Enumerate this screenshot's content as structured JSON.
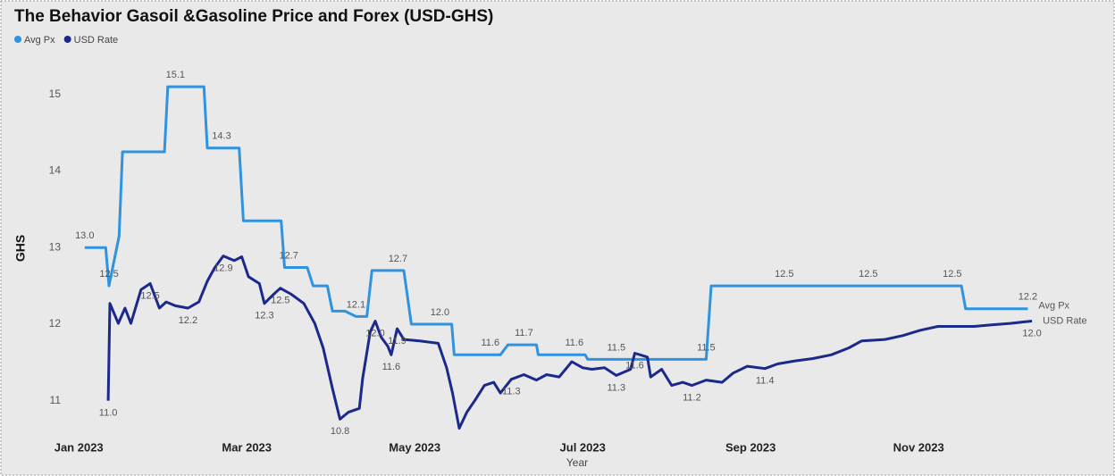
{
  "chart_data": {
    "type": "line",
    "title": "The Behavior Gasoil &Gasoline Price and Forex (USD-GHS)",
    "ylabel": "GHS",
    "xlabel": "Year",
    "xlim": [
      -0.3,
      11.7
    ],
    "xticks": [
      {
        "value": 0,
        "label": "Jan 2023"
      },
      {
        "value": 2,
        "label": "Mar 2023"
      },
      {
        "value": 4,
        "label": "May 2023"
      },
      {
        "value": 6,
        "label": "Jul 2023"
      },
      {
        "value": 8,
        "label": "Sep 2023"
      },
      {
        "value": 10,
        "label": "Nov 2023"
      }
    ],
    "ylim": [
      10.6,
      15.3
    ],
    "yticks": [
      11,
      12,
      13,
      14,
      15
    ],
    "legend": "top-left",
    "grid": false,
    "series": [
      {
        "name": "Avg Px",
        "color": "#2f93e0",
        "x": [
          0.07,
          0.32,
          0.36,
          0.48,
          0.52,
          1.02,
          1.06,
          1.15,
          1.49,
          1.53,
          1.7,
          1.91,
          1.96,
          2.41,
          2.45,
          2.5,
          2.72,
          2.79,
          2.96,
          3.02,
          3.17,
          3.3,
          3.43,
          3.49,
          3.8,
          3.87,
          3.96,
          4.3,
          4.44,
          4.47,
          4.9,
          5.02,
          5.11,
          5.3,
          5.45,
          5.47,
          5.9,
          6.03,
          6.06,
          6.4,
          7.47,
          7.53,
          8.4,
          9.4,
          10.4,
          10.51,
          10.56,
          11.3
        ],
        "values": [
          13.0,
          13.0,
          12.5,
          13.15,
          14.25,
          14.25,
          15.1,
          15.1,
          15.1,
          14.3,
          14.3,
          14.3,
          13.35,
          13.35,
          12.74,
          12.74,
          12.74,
          12.5,
          12.5,
          12.17,
          12.17,
          12.1,
          12.1,
          12.7,
          12.7,
          12.7,
          12.0,
          12.0,
          12.0,
          11.6,
          11.6,
          11.6,
          11.73,
          11.73,
          11.73,
          11.6,
          11.6,
          11.6,
          11.54,
          11.54,
          11.54,
          12.5,
          12.5,
          12.5,
          12.5,
          12.5,
          12.2,
          12.2
        ],
        "value_labels": [
          "13.0",
          null,
          "12.5",
          null,
          null,
          null,
          null,
          "15.1",
          null,
          null,
          "14.3",
          null,
          null,
          null,
          null,
          "12.7",
          null,
          null,
          null,
          null,
          null,
          "12.1",
          null,
          null,
          "12.7",
          null,
          null,
          "12.0",
          null,
          null,
          "11.6",
          null,
          null,
          "11.7",
          null,
          null,
          "11.6",
          null,
          null,
          "11.5",
          "11.5",
          null,
          "12.5",
          "12.5",
          "12.5",
          null,
          null,
          "12.2"
        ]
      },
      {
        "name": "USD Rate",
        "color": "#1b2a8a",
        "x": [
          0.35,
          0.37,
          0.47,
          0.55,
          0.62,
          0.74,
          0.85,
          0.96,
          1.04,
          1.15,
          1.3,
          1.43,
          1.53,
          1.62,
          1.72,
          1.85,
          1.94,
          2.02,
          2.15,
          2.21,
          2.32,
          2.4,
          2.53,
          2.68,
          2.81,
          2.91,
          3.02,
          3.11,
          3.21,
          3.34,
          3.38,
          3.47,
          3.53,
          3.6,
          3.68,
          3.72,
          3.79,
          3.87,
          4.06,
          4.28,
          4.38,
          4.45,
          4.53,
          4.62,
          4.72,
          4.83,
          4.94,
          5.02,
          5.15,
          5.3,
          5.45,
          5.57,
          5.72,
          5.87,
          6.0,
          6.11,
          6.26,
          6.4,
          6.57,
          6.62,
          6.77,
          6.81,
          6.94,
          7.06,
          7.19,
          7.3,
          7.47,
          7.66,
          7.79,
          7.96,
          8.17,
          8.32,
          8.53,
          8.74,
          8.96,
          9.17,
          9.32,
          9.6,
          9.81,
          10.02,
          10.23,
          10.45,
          10.66,
          10.87,
          11.09,
          11.35
        ],
        "values": [
          11.0,
          12.27,
          12.01,
          12.21,
          12.01,
          12.45,
          12.53,
          12.21,
          12.29,
          12.24,
          12.21,
          12.29,
          12.56,
          12.74,
          12.89,
          12.83,
          12.88,
          12.62,
          12.53,
          12.27,
          12.39,
          12.47,
          12.39,
          12.27,
          12.01,
          11.69,
          11.16,
          10.76,
          10.85,
          10.9,
          11.29,
          11.9,
          12.04,
          11.83,
          11.71,
          11.6,
          11.94,
          11.8,
          11.78,
          11.75,
          11.43,
          11.1,
          10.64,
          10.85,
          11.01,
          11.2,
          11.24,
          11.1,
          11.28,
          11.34,
          11.27,
          11.34,
          11.31,
          11.51,
          11.43,
          11.41,
          11.43,
          11.33,
          11.41,
          11.62,
          11.57,
          11.31,
          11.41,
          11.2,
          11.24,
          11.2,
          11.27,
          11.24,
          11.36,
          11.45,
          11.42,
          11.48,
          11.52,
          11.55,
          11.6,
          11.69,
          11.78,
          11.8,
          11.85,
          11.92,
          11.97,
          11.97,
          11.97,
          11.99,
          12.01,
          12.04
        ],
        "value_labels": [
          "11.0",
          null,
          null,
          null,
          null,
          null,
          "12.5",
          null,
          null,
          null,
          "12.2",
          null,
          null,
          null,
          "12.9",
          null,
          null,
          null,
          null,
          "12.3",
          null,
          "12.5",
          null,
          null,
          null,
          null,
          null,
          "10.8",
          null,
          null,
          null,
          null,
          "12.0",
          null,
          null,
          "11.6",
          "11.9",
          null,
          null,
          null,
          null,
          null,
          null,
          null,
          null,
          null,
          null,
          null,
          "11.3",
          null,
          null,
          null,
          null,
          null,
          null,
          null,
          null,
          "11.3",
          null,
          "11.6",
          null,
          null,
          null,
          null,
          null,
          "11.2",
          null,
          null,
          null,
          null,
          "11.4",
          null,
          null,
          null,
          null,
          null,
          null,
          null,
          null,
          null,
          null,
          null,
          null,
          null,
          null,
          "12.0"
        ]
      }
    ]
  }
}
